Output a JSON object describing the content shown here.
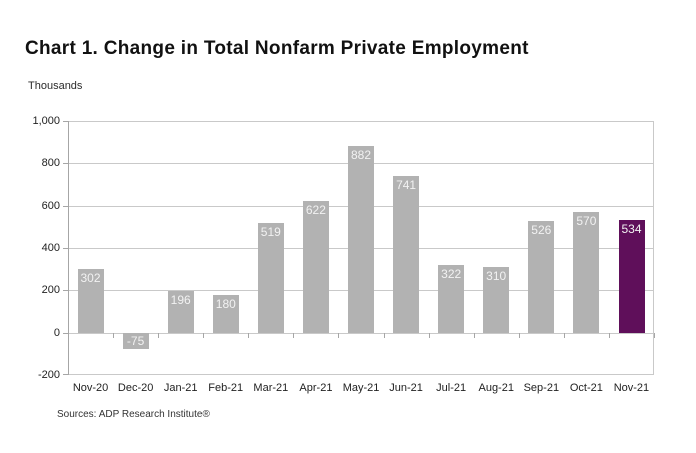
{
  "page": {
    "title": "Chart 1. Change in Total Nonfarm Private Employment",
    "units_label": "Thousands",
    "source": "Sources: ADP Research Institute®"
  },
  "chart_data": {
    "type": "bar",
    "title": "Chart 1. Change in Total Nonfarm Private Employment",
    "ylabel": "Thousands",
    "xlabel": "",
    "categories": [
      "Nov-20",
      "Dec-20",
      "Jan-21",
      "Feb-21",
      "Mar-21",
      "Apr-21",
      "May-21",
      "Jun-21",
      "Jul-21",
      "Aug-21",
      "Sep-21",
      "Oct-21",
      "Nov-21"
    ],
    "values": [
      302,
      -75,
      196,
      180,
      519,
      622,
      882,
      741,
      322,
      310,
      526,
      570,
      534
    ],
    "highlight_index": 12,
    "ylim": [
      -200,
      1000
    ],
    "ytick_step": 200,
    "yticks": [
      [
        1000,
        "1,000"
      ],
      [
        800,
        "800"
      ],
      [
        600,
        "600"
      ],
      [
        400,
        "400"
      ],
      [
        200,
        "200"
      ],
      [
        0,
        "0"
      ],
      [
        -200,
        "-200"
      ]
    ],
    "grid": true,
    "legend": "none",
    "data_labels": "inside-end",
    "source": "Sources: ADP Research Institute®",
    "colors": {
      "bar": "#b2b2b2",
      "highlight_bar": "#5f0f5a",
      "bar_label": "#f2f2f2",
      "gridline": "#c9c9c9",
      "axis": "#a6a6a6",
      "text": "#222222"
    }
  }
}
